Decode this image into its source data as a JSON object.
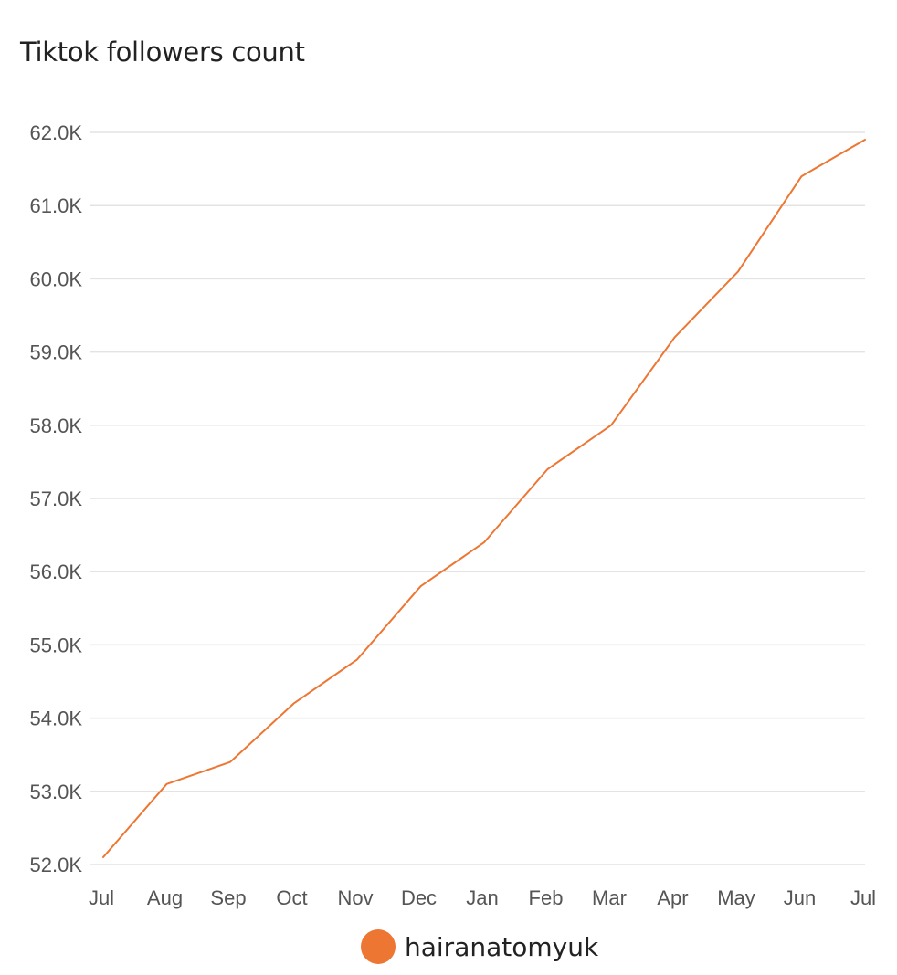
{
  "chart_data": {
    "type": "line",
    "title": "Tiktok followers count",
    "xlabel": "",
    "ylabel": "",
    "categories": [
      "Jul",
      "Aug",
      "Sep",
      "Oct",
      "Nov",
      "Dec",
      "Jan",
      "Feb",
      "Mar",
      "Apr",
      "May",
      "Jun",
      "Jul"
    ],
    "series": [
      {
        "name": "hairanatomyuk",
        "color": "#ED7633",
        "values": [
          52100,
          53100,
          53400,
          54200,
          54800,
          55800,
          56400,
          57400,
          58000,
          59200,
          60100,
          61400,
          61900
        ]
      }
    ],
    "y_ticks": [
      52000,
      53000,
      54000,
      55000,
      56000,
      57000,
      58000,
      59000,
      60000,
      61000,
      62000
    ],
    "y_tick_labels": [
      "52.0K",
      "53.0K",
      "54.0K",
      "55.0K",
      "56.0K",
      "57.0K",
      "58.0K",
      "59.0K",
      "60.0K",
      "61.0K",
      "62.0K"
    ],
    "ylim": [
      52000,
      62000
    ],
    "grid": true,
    "legend_position": "bottom"
  }
}
